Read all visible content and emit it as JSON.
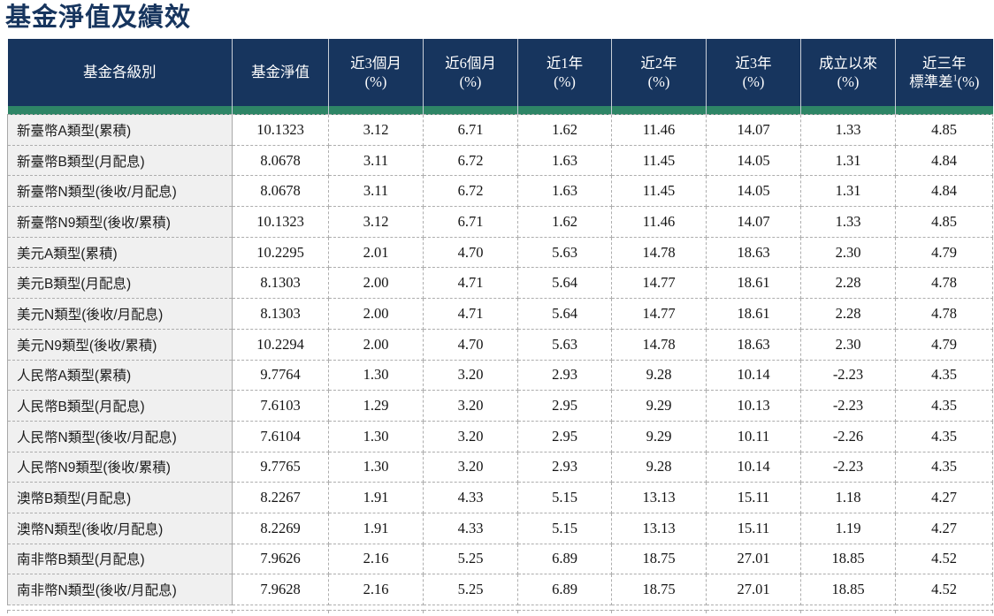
{
  "page": {
    "title": "基金淨值及績效"
  },
  "colors": {
    "title_text": "#17355E",
    "header_bg": "#17355E",
    "header_text": "#FFFFFF",
    "accent_bar_green": "#2E8566",
    "label_column_bg": "#F0F0F0",
    "grid_line": "#ADADAD"
  },
  "table": {
    "header": {
      "col_fund_class": "基金各級別",
      "col_nav": "基金淨值",
      "cols_pct": [
        {
          "line1": "近3個月",
          "line2": "(%)"
        },
        {
          "line1": "近6個月",
          "line2": "(%)"
        },
        {
          "line1": "近1年",
          "line2": "(%)"
        },
        {
          "line1": "近2年",
          "line2": "(%)"
        },
        {
          "line1": "近3年",
          "line2": "(%)"
        },
        {
          "line1": "成立以來",
          "line2": "(%)"
        }
      ],
      "std": {
        "line1": "近三年",
        "line2_prefix": "標準差",
        "sup": "1",
        "line2_suffix": "(%)"
      }
    },
    "rows": [
      {
        "label": "新臺幣A類型(累積)",
        "values": [
          "10.1323",
          "3.12",
          "6.71",
          "1.62",
          "11.46",
          "14.07",
          "1.33",
          "4.85"
        ]
      },
      {
        "label": "新臺幣B類型(月配息)",
        "values": [
          "8.0678",
          "3.11",
          "6.72",
          "1.63",
          "11.45",
          "14.05",
          "1.31",
          "4.84"
        ]
      },
      {
        "label": "新臺幣N類型(後收/月配息)",
        "values": [
          "8.0678",
          "3.11",
          "6.72",
          "1.63",
          "11.45",
          "14.05",
          "1.31",
          "4.84"
        ]
      },
      {
        "label": "新臺幣N9類型(後收/累積)",
        "values": [
          "10.1323",
          "3.12",
          "6.71",
          "1.62",
          "11.46",
          "14.07",
          "1.33",
          "4.85"
        ]
      },
      {
        "label": "美元A類型(累積)",
        "values": [
          "10.2295",
          "2.01",
          "4.70",
          "5.63",
          "14.78",
          "18.63",
          "2.30",
          "4.79"
        ]
      },
      {
        "label": "美元B類型(月配息)",
        "values": [
          "8.1303",
          "2.00",
          "4.71",
          "5.64",
          "14.77",
          "18.61",
          "2.28",
          "4.78"
        ]
      },
      {
        "label": "美元N類型(後收/月配息)",
        "values": [
          "8.1303",
          "2.00",
          "4.71",
          "5.64",
          "14.77",
          "18.61",
          "2.28",
          "4.78"
        ]
      },
      {
        "label": "美元N9類型(後收/累積)",
        "values": [
          "10.2294",
          "2.00",
          "4.70",
          "5.63",
          "14.78",
          "18.63",
          "2.30",
          "4.79"
        ]
      },
      {
        "label": "人民幣A類型(累積)",
        "values": [
          "9.7764",
          "1.30",
          "3.20",
          "2.93",
          "9.28",
          "10.14",
          "-2.23",
          "4.35"
        ]
      },
      {
        "label": "人民幣B類型(月配息)",
        "values": [
          "7.6103",
          "1.29",
          "3.20",
          "2.95",
          "9.29",
          "10.13",
          "-2.23",
          "4.35"
        ]
      },
      {
        "label": "人民幣N類型(後收/月配息)",
        "values": [
          "7.6104",
          "1.30",
          "3.20",
          "2.95",
          "9.29",
          "10.11",
          "-2.26",
          "4.35"
        ]
      },
      {
        "label": "人民幣N9類型(後收/累積)",
        "values": [
          "9.7765",
          "1.30",
          "3.20",
          "2.93",
          "9.28",
          "10.14",
          "-2.23",
          "4.35"
        ]
      },
      {
        "label": "澳幣B類型(月配息)",
        "values": [
          "8.2267",
          "1.91",
          "4.33",
          "5.15",
          "13.13",
          "15.11",
          "1.18",
          "4.27"
        ]
      },
      {
        "label": "澳幣N類型(後收/月配息)",
        "values": [
          "8.2269",
          "1.91",
          "4.33",
          "5.15",
          "13.13",
          "15.11",
          "1.19",
          "4.27"
        ]
      },
      {
        "label": "南非幣B類型(月配息)",
        "values": [
          "7.9626",
          "2.16",
          "5.25",
          "6.89",
          "18.75",
          "27.01",
          "18.85",
          "4.52"
        ]
      },
      {
        "label": "南非幣N類型(後收/月配息)",
        "values": [
          "7.9628",
          "2.16",
          "5.25",
          "6.89",
          "18.75",
          "27.01",
          "18.85",
          "4.52"
        ]
      }
    ]
  }
}
